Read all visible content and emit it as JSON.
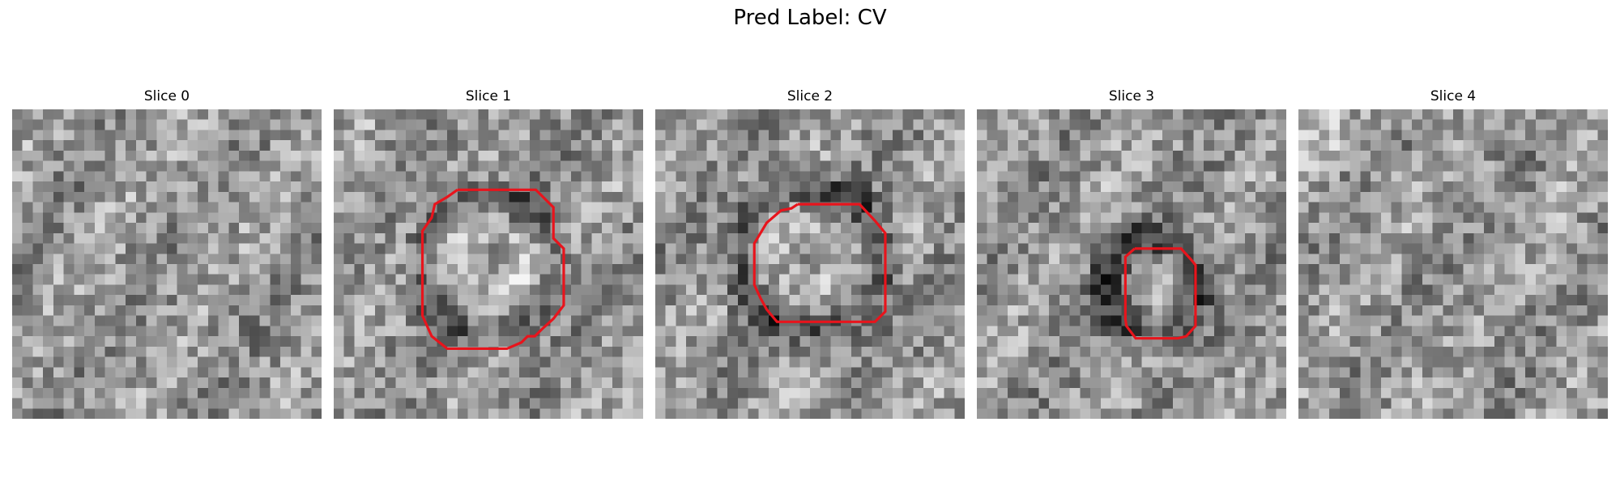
{
  "figure": {
    "title": "Pred Label: CV"
  },
  "panels": [
    {
      "title": "Slice 0",
      "has_contour": false
    },
    {
      "title": "Slice 1",
      "has_contour": true
    },
    {
      "title": "Slice 2",
      "has_contour": true
    },
    {
      "title": "Slice 3",
      "has_contour": true
    },
    {
      "title": "Slice 4",
      "has_contour": false
    }
  ],
  "colors": {
    "contour": "#e8141c",
    "background": "#ffffff"
  },
  "icons": [
    "contour-outline",
    "grayscale-slice-image"
  ]
}
